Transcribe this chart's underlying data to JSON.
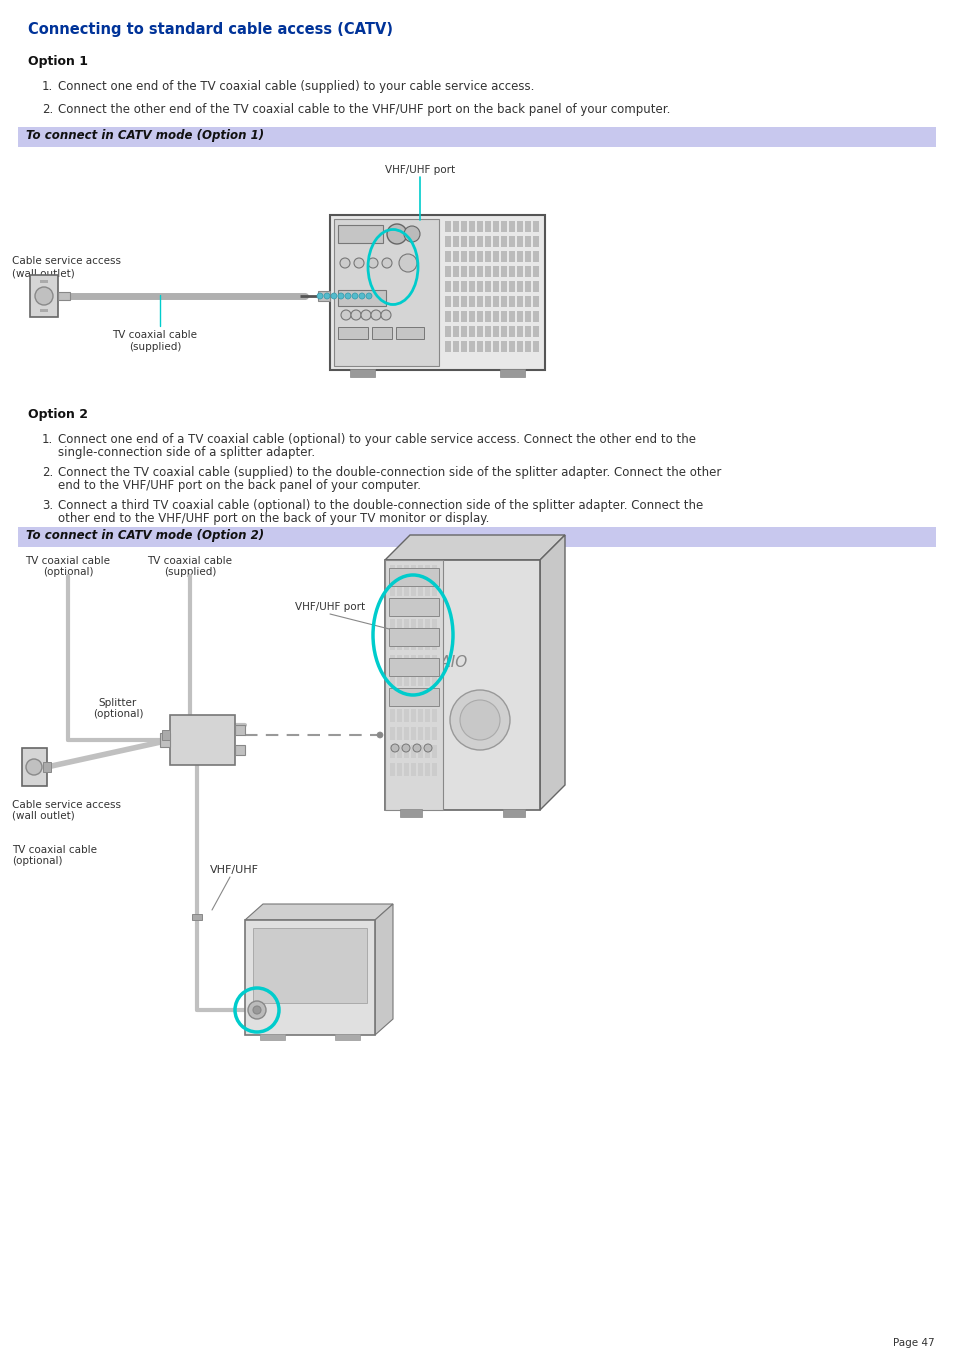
{
  "title": "Connecting to standard cable access (CATV)",
  "title_color": "#003399",
  "title_fontsize": 10.5,
  "bg_color": "#ffffff",
  "option1_label": "Option 1",
  "option2_label": "Option 2",
  "option1_step1": "Connect one end of the TV coaxial cable (supplied) to your cable service access.",
  "option1_step2": "Connect the other end of the TV coaxial cable to the VHF/UHF port on the back panel of your computer.",
  "option2_step1a": "Connect one end of a TV coaxial cable (optional) to your cable service access. Connect the other end to the",
  "option2_step1b": "single-connection side of a splitter adapter.",
  "option2_step2a": "Connect the TV coaxial cable (supplied) to the double-connection side of the splitter adapter. Connect the other",
  "option2_step2b": "end to the VHF/UHF port on the back panel of your computer.",
  "option2_step3a": "Connect a third TV coaxial cable (optional) to the double-connection side of the splitter adapter. Connect the",
  "option2_step3b": "other end to the VHF/UHF port on the back of your TV monitor or display.",
  "banner1_text": "To connect in CATV mode (Option 1)",
  "banner2_text": "To connect in CATV mode (Option 2)",
  "banner_bg": "#c8c8ee",
  "page_label": "Page 47",
  "cyan_color": "#00cccc",
  "dark_color": "#333333",
  "body_fontsize": 8.5,
  "label_fontsize": 7.5
}
